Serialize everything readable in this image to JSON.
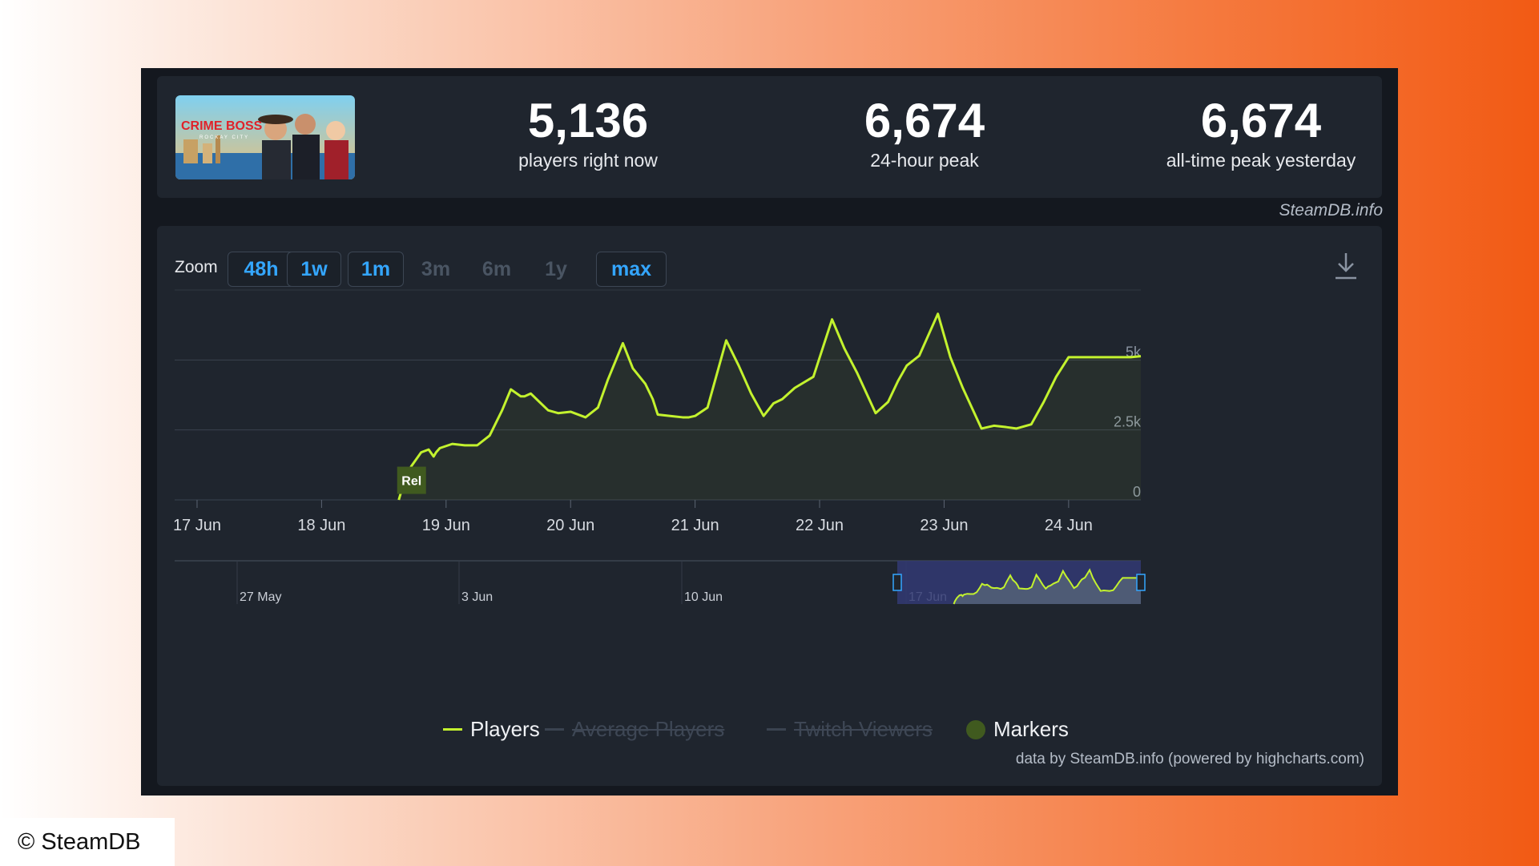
{
  "stats": {
    "current": {
      "value": "5,136",
      "label": "players right now"
    },
    "peak24h": {
      "value": "6,674",
      "label": "24-hour peak"
    },
    "alltime": {
      "value": "6,674",
      "label": "all-time peak yesterday"
    }
  },
  "thumbnail": {
    "title": "CRIME BOSS",
    "subtitle": "ROCKAY CITY"
  },
  "source_label": "SteamDB.info",
  "zoom": {
    "label": "Zoom",
    "buttons": [
      {
        "label": "48h",
        "active": true
      },
      {
        "label": "1w",
        "active": true
      },
      {
        "label": "1m",
        "active": true
      },
      {
        "label": "3m",
        "active": false
      },
      {
        "label": "6m",
        "active": false
      },
      {
        "label": "1y",
        "active": false
      },
      {
        "label": "max",
        "active": true
      }
    ]
  },
  "legend": {
    "players": "Players",
    "average_players": "Average Players",
    "twitch_viewers": "Twitch Viewers",
    "markers": "Markers"
  },
  "credits": "data by SteamDB.info (powered by highcharts.com)",
  "copyright": "© SteamDB",
  "colors": {
    "players_line": "#c3f22e",
    "marker_fill": "#405a1f",
    "active_button": "#34a6ff",
    "navigator_selection": "#333a73",
    "panel": "#1f252e"
  },
  "icons": {
    "download": "download-icon"
  },
  "chart_data": {
    "type": "line",
    "title": "",
    "xlabel": "",
    "ylabel": "",
    "x_unit": "day of June (fractional)",
    "xlim": [
      16.82,
      24.58
    ],
    "ylim": [
      0,
      7500
    ],
    "yticks": [
      0,
      2500,
      5000
    ],
    "ytick_labels": [
      "0",
      "2.5k",
      "5k"
    ],
    "xticks": [
      17,
      18,
      19,
      20,
      21,
      22,
      23,
      24
    ],
    "xtick_labels": [
      "17 Jun",
      "18 Jun",
      "19 Jun",
      "20 Jun",
      "21 Jun",
      "22 Jun",
      "23 Jun",
      "24 Jun"
    ],
    "grid": true,
    "legend_position": "bottom-center",
    "series": [
      {
        "name": "Players",
        "x": [
          18.62,
          18.66,
          18.72,
          18.8,
          18.86,
          18.9,
          18.92,
          18.95,
          19.05,
          19.15,
          19.25,
          19.35,
          19.45,
          19.52,
          19.6,
          19.63,
          19.68,
          19.75,
          19.82,
          19.9,
          20.0,
          20.12,
          20.22,
          20.3,
          20.42,
          20.5,
          20.6,
          20.66,
          20.7,
          20.8,
          20.9,
          20.95,
          21.0,
          21.1,
          21.25,
          21.35,
          21.45,
          21.55,
          21.63,
          21.7,
          21.8,
          21.95,
          22.1,
          22.2,
          22.3,
          22.45,
          22.55,
          22.63,
          22.7,
          22.8,
          22.95,
          23.05,
          23.15,
          23.3,
          23.4,
          23.5,
          23.58,
          23.62,
          23.7,
          23.8,
          23.9,
          24.0,
          24.1,
          24.2,
          24.3,
          24.4,
          24.5,
          24.58
        ],
        "y": [
          0,
          600,
          1200,
          1700,
          1800,
          1550,
          1700,
          1850,
          2000,
          1950,
          1950,
          2300,
          3200,
          3950,
          3700,
          3700,
          3800,
          3500,
          3200,
          3100,
          3150,
          2950,
          3300,
          4300,
          5600,
          4700,
          4150,
          3600,
          3050,
          3000,
          2950,
          2950,
          3000,
          3300,
          5700,
          4800,
          3800,
          3000,
          3450,
          3600,
          4000,
          4400,
          6450,
          5400,
          4550,
          3100,
          3500,
          4250,
          4800,
          5150,
          6650,
          5100,
          4000,
          2550,
          2650,
          2600,
          2550,
          2600,
          2700,
          3500,
          4400,
          5100,
          5100,
          5100,
          5100,
          5100,
          5100,
          5136
        ],
        "color": "#c3f22e"
      }
    ],
    "markers": [
      {
        "label": "Rel",
        "x": 18.62,
        "y": 700
      }
    ],
    "navigator": {
      "xtick_labels": [
        "27 May",
        "3 Jun",
        "10 Jun",
        "17 Jun"
      ],
      "selection": [
        "17 Jun",
        "24 Jun"
      ]
    }
  }
}
